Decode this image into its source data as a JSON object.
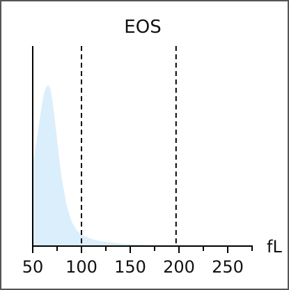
{
  "chart_data": {
    "type": "area",
    "title": "EOS",
    "xlabel": "fL",
    "ylabel": "",
    "xlim": [
      50,
      275
    ],
    "ylim": [
      0,
      1
    ],
    "x_ticks": [
      50,
      100,
      150,
      200,
      250
    ],
    "reference_lines_x": [
      100,
      197
    ],
    "grid": false,
    "fill_color": "#dbeefc",
    "line_color": "#000000",
    "series": [
      {
        "x": [
          50,
          52,
          55,
          58,
          60,
          62,
          64,
          66,
          68,
          70,
          72,
          75,
          78,
          80,
          85,
          90,
          95,
          100,
          110,
          120,
          130,
          140,
          150,
          160,
          170,
          175,
          180
        ],
        "values": [
          0.5,
          0.58,
          0.7,
          0.82,
          0.9,
          0.96,
          0.99,
          1.0,
          0.98,
          0.91,
          0.82,
          0.66,
          0.5,
          0.41,
          0.25,
          0.15,
          0.1,
          0.07,
          0.045,
          0.03,
          0.022,
          0.016,
          0.012,
          0.009,
          0.006,
          0.004,
          0.0
        ]
      }
    ]
  }
}
